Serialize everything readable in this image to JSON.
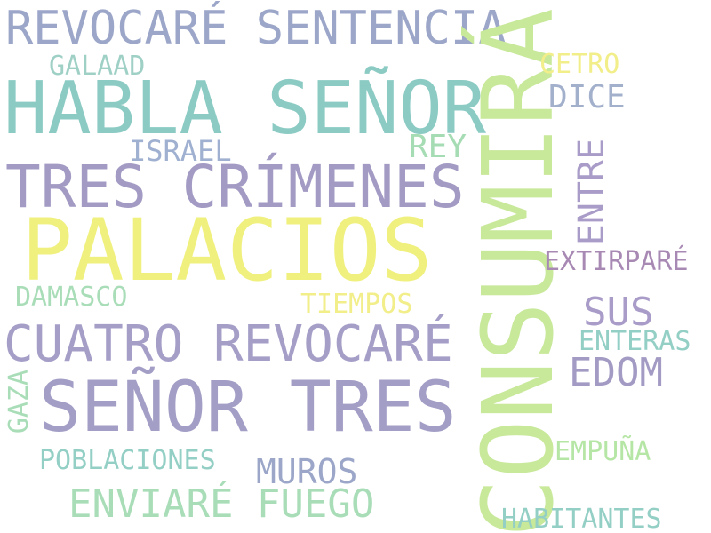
{
  "words": [
    {
      "text": "REVOCARÉ SENTENCIA",
      "color": "#9ba6c8"
    },
    {
      "text": "HABLA SEÑOR",
      "color": "#8ccbc4"
    },
    {
      "text": "CONSUMIRÁ",
      "color": "#c8e89a"
    },
    {
      "text": "GALAAD",
      "color": "#9fd0c6"
    },
    {
      "text": "CETRO",
      "color": "#f2ee8a"
    },
    {
      "text": "DICE",
      "color": "#a3b0cc"
    },
    {
      "text": "ISRAEL",
      "color": "#9fb0d0"
    },
    {
      "text": "REY",
      "color": "#a6dcb4"
    },
    {
      "text": "TRES CRÍMENES",
      "color": "#a39bc4"
    },
    {
      "text": "ENTRE",
      "color": "#a99cc8"
    },
    {
      "text": "PALACIOS",
      "color": "#eff07e"
    },
    {
      "text": "EXTIRPARÉ",
      "color": "#a889b4"
    },
    {
      "text": "DAMASCO",
      "color": "#a9ddb8"
    },
    {
      "text": "TIEMPOS",
      "color": "#f2ee8a"
    },
    {
      "text": "SUS",
      "color": "#a99cc8"
    },
    {
      "text": "CUATRO REVOCARÉ",
      "color": "#a59fc8"
    },
    {
      "text": "ENTERAS",
      "color": "#93cfc5"
    },
    {
      "text": "EDOM",
      "color": "#a39bc4"
    },
    {
      "text": "GAZA",
      "color": "#a9ddb8"
    },
    {
      "text": "SEÑOR TRES",
      "color": "#a39ec6"
    },
    {
      "text": "EMPUÑA",
      "color": "#b6e6a6"
    },
    {
      "text": "POBLACIONES",
      "color": "#93cfc5"
    },
    {
      "text": "MUROS",
      "color": "#9ba6c8"
    },
    {
      "text": "ENVIARÉ FUEGO",
      "color": "#a9ddb8"
    },
    {
      "text": "HABITANTES",
      "color": "#93cfc5"
    }
  ]
}
